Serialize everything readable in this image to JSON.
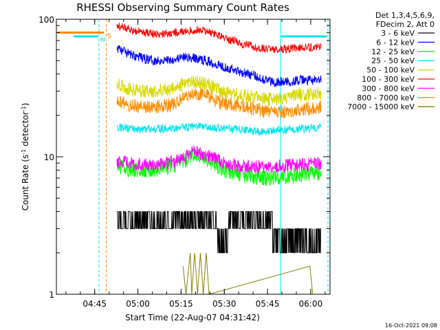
{
  "chart_data": {
    "type": "line",
    "title": "RHESSI Observing Summary Count Rates",
    "xlabel": "Start Time (22-Aug-07 04:31:42)",
    "ylabel_parts": [
      "Count Rate (s",
      "-1",
      " detector",
      "-1",
      ")"
    ],
    "yscale": "log",
    "ylim": [
      1,
      100
    ],
    "xlim_minutes": [
      0,
      95
    ],
    "x_ticks": [
      {
        "label": "04:45",
        "m": 13.3
      },
      {
        "label": "05:00",
        "m": 28.3
      },
      {
        "label": "05:15",
        "m": 43.3
      },
      {
        "label": "05:30",
        "m": 58.3
      },
      {
        "label": "05:45",
        "m": 73.3
      },
      {
        "label": "06:00",
        "m": 88.3
      }
    ],
    "y_ticks": [
      {
        "label": "1",
        "v": 1
      },
      {
        "label": "10",
        "v": 10
      },
      {
        "label": "100",
        "v": 100
      }
    ],
    "legend_header": [
      "Det 1,3,4,5,6,9,",
      "FDecim 2, Att 0"
    ],
    "legend_position": "top-right",
    "flags": [
      {
        "label": "N",
        "color": "#00e5ee"
      },
      {
        "label": "S",
        "color": "#ff8c00"
      }
    ],
    "series": [
      {
        "name": "3 - 6 keV",
        "color": "#000000",
        "points": [
          [
            21,
            4
          ],
          [
            24,
            3.9
          ],
          [
            26,
            3
          ],
          [
            30,
            3.8
          ],
          [
            35,
            3.1
          ],
          [
            40,
            3.8
          ],
          [
            45,
            4.0
          ],
          [
            50,
            3.9
          ],
          [
            55,
            3.5
          ],
          [
            57,
            2.2
          ],
          [
            60,
            3.2
          ],
          [
            65,
            3.0
          ],
          [
            70,
            3.1
          ],
          [
            75,
            3.0
          ],
          [
            80,
            2.9
          ],
          [
            85,
            3.0
          ],
          [
            92,
            2.9
          ]
        ]
      },
      {
        "name": "6 - 12 keV",
        "color": "#0000ff",
        "points": [
          [
            21,
            62
          ],
          [
            25,
            56
          ],
          [
            30,
            52
          ],
          [
            35,
            50
          ],
          [
            40,
            51
          ],
          [
            45,
            53
          ],
          [
            48,
            52
          ],
          [
            52,
            50
          ],
          [
            56,
            47
          ],
          [
            60,
            44
          ],
          [
            65,
            41
          ],
          [
            70,
            38
          ],
          [
            75,
            35
          ],
          [
            80,
            35
          ],
          [
            85,
            36
          ],
          [
            92,
            36
          ]
        ]
      },
      {
        "name": "12 - 25 keV",
        "color": "#00ff00",
        "points": [
          [
            21,
            8.5
          ],
          [
            25,
            8.2
          ],
          [
            30,
            7.8
          ],
          [
            35,
            8.2
          ],
          [
            40,
            8.6
          ],
          [
            45,
            9.5
          ],
          [
            48,
            10.5
          ],
          [
            52,
            9.8
          ],
          [
            56,
            8.5
          ],
          [
            60,
            7.8
          ],
          [
            65,
            7.4
          ],
          [
            70,
            7.1
          ],
          [
            75,
            7.0
          ],
          [
            80,
            7.2
          ],
          [
            85,
            7.4
          ],
          [
            92,
            7.6
          ]
        ]
      },
      {
        "name": "25 - 50 keV",
        "color": "#00e5ee",
        "points": [
          [
            21,
            16.5
          ],
          [
            25,
            16.2
          ],
          [
            30,
            15.8
          ],
          [
            35,
            16.0
          ],
          [
            40,
            16.1
          ],
          [
            45,
            16.3
          ],
          [
            50,
            16.6
          ],
          [
            55,
            16.2
          ],
          [
            60,
            16.0
          ],
          [
            65,
            15.6
          ],
          [
            70,
            15.3
          ],
          [
            75,
            15.5
          ],
          [
            80,
            15.8
          ],
          [
            85,
            16.0
          ],
          [
            92,
            16.3
          ]
        ]
      },
      {
        "name": "50 - 100 keV",
        "color": "#d8d800",
        "points": [
          [
            21,
            34
          ],
          [
            25,
            31
          ],
          [
            30,
            30
          ],
          [
            35,
            30
          ],
          [
            40,
            31
          ],
          [
            45,
            34
          ],
          [
            48,
            35
          ],
          [
            52,
            34
          ],
          [
            56,
            31
          ],
          [
            60,
            29
          ],
          [
            65,
            28
          ],
          [
            70,
            27
          ],
          [
            75,
            26
          ],
          [
            80,
            27
          ],
          [
            85,
            28
          ],
          [
            92,
            29
          ]
        ]
      },
      {
        "name": "100 - 300 keV",
        "color": "#ff0000",
        "points": [
          [
            21,
            90
          ],
          [
            25,
            85
          ],
          [
            30,
            80
          ],
          [
            35,
            78
          ],
          [
            40,
            79
          ],
          [
            45,
            82
          ],
          [
            48,
            84
          ],
          [
            52,
            82
          ],
          [
            56,
            77
          ],
          [
            60,
            71
          ],
          [
            65,
            66
          ],
          [
            70,
            62
          ],
          [
            75,
            60
          ],
          [
            80,
            61
          ],
          [
            85,
            62
          ],
          [
            92,
            63
          ]
        ]
      },
      {
        "name": "300 - 800 keV",
        "color": "#ff00ff",
        "points": [
          [
            21,
            9.2
          ],
          [
            25,
            9.0
          ],
          [
            30,
            8.7
          ],
          [
            35,
            8.8
          ],
          [
            40,
            9.1
          ],
          [
            45,
            9.8
          ],
          [
            48,
            11.0
          ],
          [
            52,
            10.3
          ],
          [
            56,
            9.4
          ],
          [
            60,
            8.8
          ],
          [
            65,
            8.5
          ],
          [
            70,
            8.4
          ],
          [
            75,
            8.5
          ],
          [
            80,
            8.6
          ],
          [
            85,
            8.8
          ],
          [
            92,
            9.0
          ]
        ]
      },
      {
        "name": "800 - 7000 keV",
        "color": "#ff8c00",
        "points": [
          [
            21,
            26
          ],
          [
            25,
            24
          ],
          [
            30,
            23
          ],
          [
            35,
            23
          ],
          [
            40,
            24
          ],
          [
            45,
            27
          ],
          [
            48,
            29
          ],
          [
            52,
            28
          ],
          [
            56,
            25
          ],
          [
            60,
            24
          ],
          [
            65,
            23
          ],
          [
            70,
            22
          ],
          [
            75,
            21
          ],
          [
            80,
            21.5
          ],
          [
            85,
            22
          ],
          [
            92,
            23
          ]
        ]
      },
      {
        "name": "7000 - 15000 keV",
        "color": "#808000",
        "points": [
          [
            44,
            1.6
          ],
          [
            45,
            1.0
          ],
          [
            46.5,
            2.0
          ],
          [
            47,
            1.0
          ],
          [
            48,
            2.0
          ],
          [
            49,
            1.0
          ],
          [
            50,
            2.0
          ],
          [
            51,
            1.0
          ],
          [
            52,
            2.0
          ],
          [
            53,
            1.0
          ],
          [
            88,
            1.6
          ],
          [
            89,
            1.0
          ]
        ]
      }
    ],
    "attenuator_level": 80,
    "saa_level": 75
  },
  "footer_date": "16-Oct-2021 09:08"
}
